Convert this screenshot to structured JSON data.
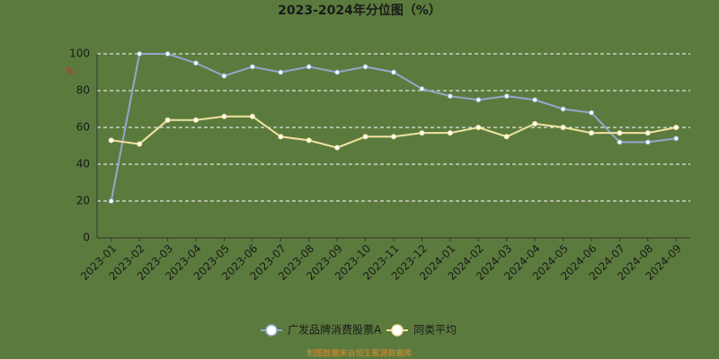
{
  "chart_data": {
    "type": "line",
    "title": "2023-2024年分位图（%）",
    "y_label": "%",
    "categories": [
      "2023-01",
      "2023-02",
      "2023-03",
      "2023-04",
      "2023-05",
      "2023-06",
      "2023-07",
      "2023-08",
      "2023-09",
      "2023-10",
      "2023-11",
      "2023-12",
      "2024-01",
      "2024-02",
      "2024-03",
      "2024-04",
      "2024-05",
      "2024-06",
      "2024-07",
      "2024-08",
      "2024-09"
    ],
    "series": [
      {
        "name": "广发品牌消费股票A",
        "color": "#8fa9cc",
        "values": [
          20,
          100,
          100,
          95,
          88,
          93,
          90,
          93,
          90,
          93,
          90,
          81,
          77,
          75,
          77,
          75,
          70,
          68,
          52,
          52,
          54
        ]
      },
      {
        "name": "同类平均",
        "color": "#f2e3a0",
        "values": [
          53,
          51,
          64,
          64,
          66,
          66,
          55,
          53,
          49,
          55,
          55,
          57,
          57,
          60,
          55,
          62,
          60,
          57,
          57,
          57,
          60
        ]
      }
    ],
    "ylim": [
      0,
      100
    ],
    "yticks": [
      0,
      20,
      40,
      60,
      80,
      100
    ],
    "grid": true,
    "footer": "制图数据来自恒生聚源数据库"
  }
}
